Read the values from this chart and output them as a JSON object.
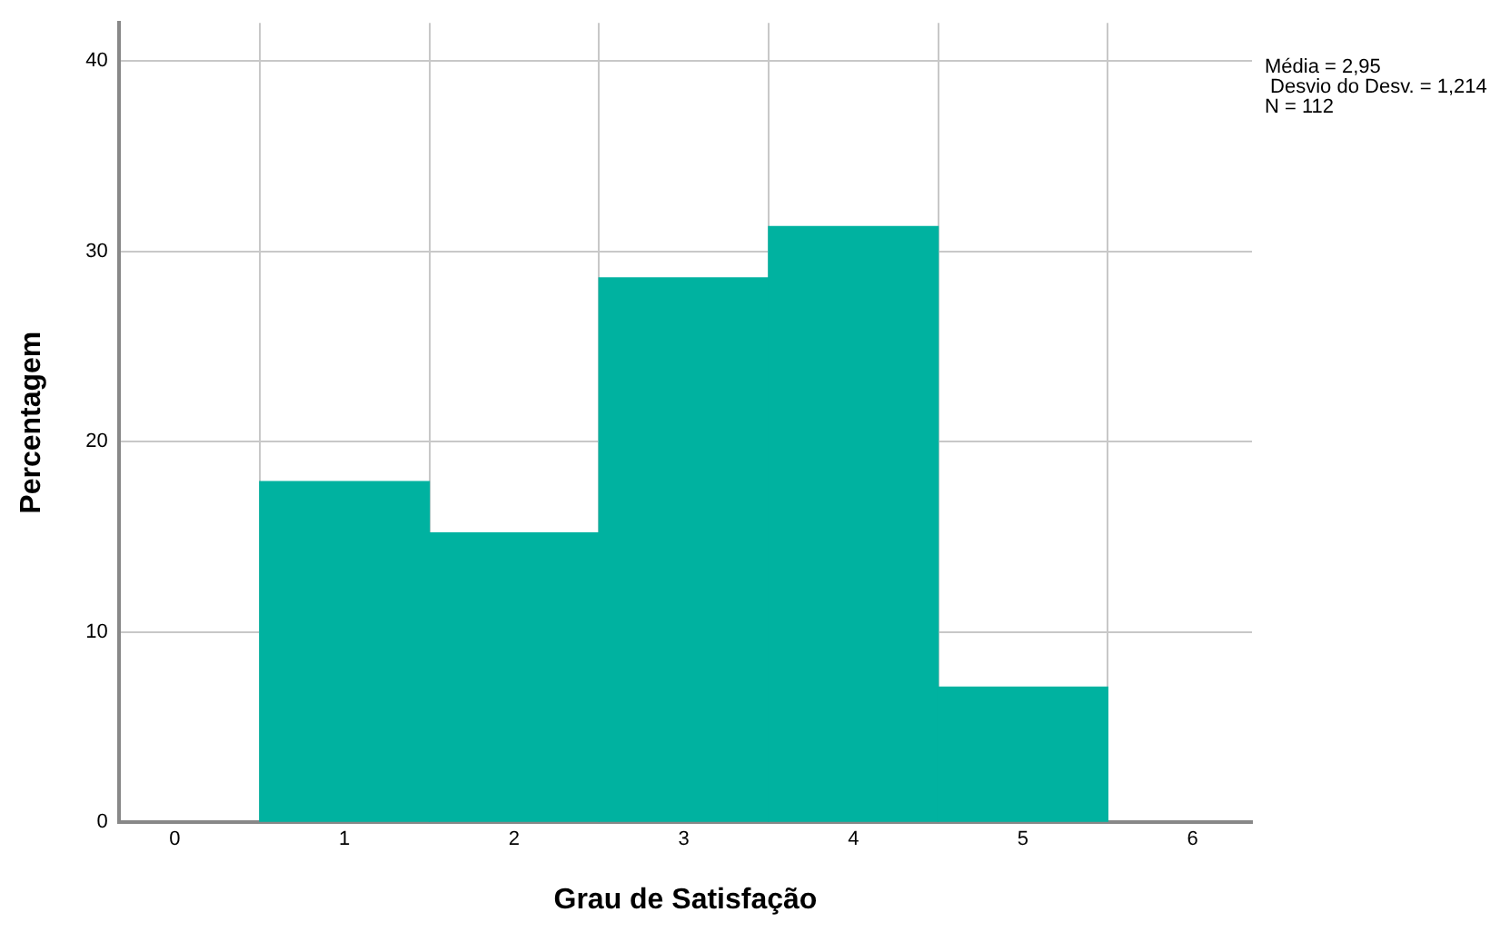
{
  "chart_data": {
    "type": "histogram",
    "xlabel": "Grau de Satisfação",
    "ylabel": "Percentagem",
    "bins": [
      0.5,
      1.5,
      2.5,
      3.5,
      4.5,
      5.5
    ],
    "values": [
      17.9,
      15.2,
      28.6,
      31.3,
      7.1
    ],
    "color": "#00b2a0",
    "xlim": [
      -0.33,
      6.35
    ],
    "xticks": [
      0,
      1,
      2,
      3,
      4,
      5,
      6
    ],
    "ylim": [
      0,
      42
    ],
    "yticks": [
      0,
      10,
      20,
      30,
      40
    ],
    "grid": true,
    "annotations": [
      "Média = 2,95",
      " Desvio do Desv. = 1,214",
      "N = 112"
    ]
  }
}
